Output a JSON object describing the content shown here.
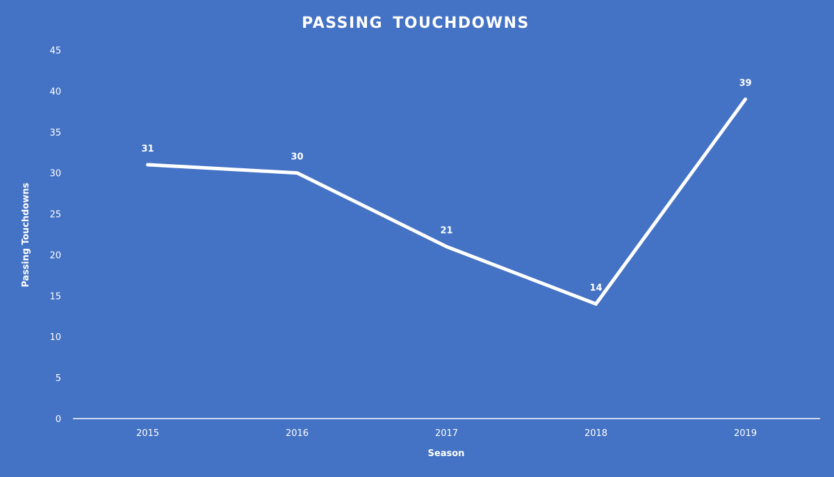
{
  "chart_data": {
    "type": "line",
    "title": "PASSING TOUCHDOWNS",
    "xlabel": "Season",
    "ylabel": "Passing Touchdowns",
    "categories": [
      "2015",
      "2016",
      "2017",
      "2018",
      "2019"
    ],
    "series": [
      {
        "values": [
          31,
          30,
          21,
          14,
          39
        ]
      }
    ],
    "ylim": [
      0,
      45
    ],
    "yticks": [
      0,
      5,
      10,
      15,
      20,
      25,
      30,
      35,
      40,
      45
    ],
    "grid": false,
    "drop_lines": true,
    "data_labels": true,
    "legend": "none",
    "colors": {
      "background": "#4472c4",
      "line": "#ffffff",
      "text": "#ffffff"
    }
  }
}
